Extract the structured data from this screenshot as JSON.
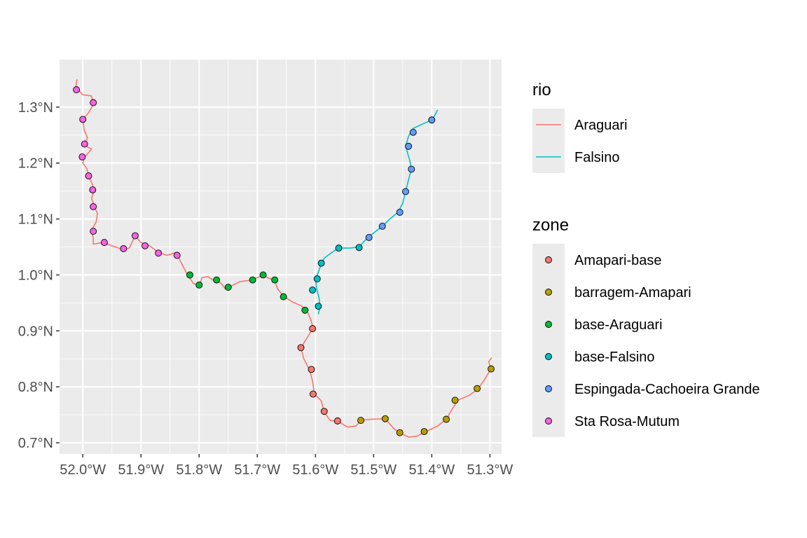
{
  "chart_data": {
    "type": "map",
    "x_axis": {
      "range": [
        -52.04,
        -51.28
      ],
      "ticks": [
        {
          "value": -52.0,
          "label": "52.0°W"
        },
        {
          "value": -51.9,
          "label": "51.9°W"
        },
        {
          "value": -51.8,
          "label": "51.8°W"
        },
        {
          "value": -51.7,
          "label": "51.7°W"
        },
        {
          "value": -51.6,
          "label": "51.6°W"
        },
        {
          "value": -51.5,
          "label": "51.5°W"
        },
        {
          "value": -51.4,
          "label": "51.4°W"
        },
        {
          "value": -51.3,
          "label": "51.3°W"
        }
      ]
    },
    "y_axis": {
      "range": [
        0.68,
        1.385
      ],
      "ticks": [
        {
          "value": 0.7,
          "label": "0.7°N"
        },
        {
          "value": 0.8,
          "label": "0.8°N"
        },
        {
          "value": 0.9,
          "label": "0.9°N"
        },
        {
          "value": 1.0,
          "label": "1.0°N"
        },
        {
          "value": 1.1,
          "label": "1.1°N"
        },
        {
          "value": 1.2,
          "label": "1.2°N"
        },
        {
          "value": 1.3,
          "label": "1.3°N"
        }
      ]
    },
    "grid": true,
    "legend_placement": "right",
    "rivers_legend": {
      "title": "rio",
      "items": [
        {
          "name": "Araguari",
          "color": "#F8766D"
        },
        {
          "name": "Falsino",
          "color": "#00BFC4"
        }
      ]
    },
    "zones_legend": {
      "title": "zone",
      "items": [
        {
          "name": "Amapari-base",
          "color": "#F8766D"
        },
        {
          "name": "barragem-Amapari",
          "color": "#B79F00"
        },
        {
          "name": "base-Araguari",
          "color": "#00BA38"
        },
        {
          "name": "base-Falsino",
          "color": "#00BFC4"
        },
        {
          "name": "Espingada-Cachoeira Grande",
          "color": "#619CFF"
        },
        {
          "name": "Sta Rosa-Mutum",
          "color": "#F564E3"
        }
      ]
    },
    "rivers": [
      {
        "name": "Araguari",
        "color": "#F8766D",
        "path": [
          [
            -52.01,
            1.35
          ],
          [
            -52.012,
            1.335
          ],
          [
            -52.0,
            1.322
          ],
          [
            -51.985,
            1.32
          ],
          [
            -51.982,
            1.305
          ],
          [
            -51.99,
            1.29
          ],
          [
            -52.0,
            1.278
          ],
          [
            -51.998,
            1.26
          ],
          [
            -51.992,
            1.245
          ],
          [
            -51.998,
            1.232
          ],
          [
            -51.985,
            1.225
          ],
          [
            -51.997,
            1.21
          ],
          [
            -52.0,
            1.2
          ],
          [
            -51.993,
            1.19
          ],
          [
            -51.99,
            1.177
          ],
          [
            -51.985,
            1.165
          ],
          [
            -51.98,
            1.152
          ],
          [
            -51.985,
            1.137
          ],
          [
            -51.98,
            1.122
          ],
          [
            -51.975,
            1.11
          ],
          [
            -51.977,
            1.095
          ],
          [
            -51.985,
            1.08
          ],
          [
            -51.982,
            1.065
          ],
          [
            -51.982,
            1.055
          ],
          [
            -51.965,
            1.058
          ],
          [
            -51.95,
            1.052
          ],
          [
            -51.93,
            1.045
          ],
          [
            -51.92,
            1.048
          ],
          [
            -51.91,
            1.07
          ],
          [
            -51.9,
            1.058
          ],
          [
            -51.885,
            1.052
          ],
          [
            -51.87,
            1.04
          ],
          [
            -51.855,
            1.035
          ],
          [
            -51.84,
            1.04
          ],
          [
            -51.83,
            1.02
          ],
          [
            -51.82,
            1.0
          ],
          [
            -51.81,
            0.985
          ],
          [
            -51.8,
            0.98
          ],
          [
            -51.795,
            0.995
          ],
          [
            -51.785,
            0.997
          ],
          [
            -51.775,
            0.99
          ],
          [
            -51.762,
            0.985
          ],
          [
            -51.755,
            0.975
          ],
          [
            -51.745,
            0.98
          ],
          [
            -51.73,
            0.988
          ],
          [
            -51.715,
            0.99
          ],
          [
            -51.7,
            0.995
          ],
          [
            -51.69,
            1.0
          ],
          [
            -51.682,
            0.995
          ],
          [
            -51.67,
            0.99
          ],
          [
            -51.665,
            0.975
          ],
          [
            -51.655,
            0.962
          ],
          [
            -51.64,
            0.952
          ],
          [
            -51.625,
            0.945
          ],
          [
            -51.615,
            0.937
          ],
          [
            -51.608,
            0.92
          ],
          [
            -51.604,
            0.905
          ],
          [
            -51.61,
            0.895
          ],
          [
            -51.625,
            0.87
          ],
          [
            -51.62,
            0.85
          ],
          [
            -51.61,
            0.83
          ],
          [
            -51.605,
            0.81
          ],
          [
            -51.602,
            0.787
          ],
          [
            -51.59,
            0.775
          ],
          [
            -51.585,
            0.755
          ],
          [
            -51.575,
            0.74
          ],
          [
            -51.56,
            0.738
          ],
          [
            -51.545,
            0.728
          ],
          [
            -51.53,
            0.73
          ],
          [
            -51.522,
            0.74
          ],
          [
            -51.505,
            0.742
          ],
          [
            -51.48,
            0.743
          ],
          [
            -51.465,
            0.725
          ],
          [
            -51.455,
            0.718
          ],
          [
            -51.44,
            0.71
          ],
          [
            -51.425,
            0.712
          ],
          [
            -51.41,
            0.72
          ],
          [
            -51.39,
            0.73
          ],
          [
            -51.375,
            0.742
          ],
          [
            -51.365,
            0.76
          ],
          [
            -51.355,
            0.776
          ],
          [
            -51.335,
            0.785
          ],
          [
            -51.32,
            0.797
          ],
          [
            -51.31,
            0.812
          ],
          [
            -51.298,
            0.832
          ],
          [
            -51.302,
            0.845
          ],
          [
            -51.297,
            0.852
          ]
        ]
      },
      {
        "name": "Falsino",
        "color": "#00BFC4",
        "path": [
          [
            -51.39,
            1.295
          ],
          [
            -51.395,
            1.285
          ],
          [
            -51.4,
            1.277
          ],
          [
            -51.415,
            1.27
          ],
          [
            -51.432,
            1.262
          ],
          [
            -51.44,
            1.248
          ],
          [
            -51.445,
            1.23
          ],
          [
            -51.438,
            1.205
          ],
          [
            -51.435,
            1.19
          ],
          [
            -51.44,
            1.17
          ],
          [
            -51.445,
            1.15
          ],
          [
            -51.45,
            1.128
          ],
          [
            -51.458,
            1.112
          ],
          [
            -51.472,
            1.1
          ],
          [
            -51.485,
            1.087
          ],
          [
            -51.5,
            1.075
          ],
          [
            -51.51,
            1.066
          ],
          [
            -51.518,
            1.058
          ],
          [
            -51.525,
            1.05
          ],
          [
            -51.54,
            1.048
          ],
          [
            -51.56,
            1.048
          ],
          [
            -51.572,
            1.04
          ],
          [
            -51.585,
            1.03
          ],
          [
            -51.59,
            1.02
          ],
          [
            -51.595,
            1.005
          ],
          [
            -51.6,
            0.993
          ],
          [
            -51.598,
            0.975
          ],
          [
            -51.594,
            0.96
          ],
          [
            -51.592,
            0.945
          ],
          [
            -51.595,
            0.93
          ]
        ]
      }
    ],
    "points": [
      {
        "zone": "Sta Rosa-Mutum",
        "lon": -52.011,
        "lat": 1.331
      },
      {
        "zone": "Sta Rosa-Mutum",
        "lon": -51.982,
        "lat": 1.308
      },
      {
        "zone": "Sta Rosa-Mutum",
        "lon": -52.0,
        "lat": 1.278
      },
      {
        "zone": "Sta Rosa-Mutum",
        "lon": -51.997,
        "lat": 1.234
      },
      {
        "zone": "Sta Rosa-Mutum",
        "lon": -52.001,
        "lat": 1.211
      },
      {
        "zone": "Sta Rosa-Mutum",
        "lon": -51.99,
        "lat": 1.177
      },
      {
        "zone": "Sta Rosa-Mutum",
        "lon": -51.983,
        "lat": 1.152
      },
      {
        "zone": "Sta Rosa-Mutum",
        "lon": -51.982,
        "lat": 1.122
      },
      {
        "zone": "Sta Rosa-Mutum",
        "lon": -51.982,
        "lat": 1.078
      },
      {
        "zone": "Sta Rosa-Mutum",
        "lon": -51.963,
        "lat": 1.058
      },
      {
        "zone": "Sta Rosa-Mutum",
        "lon": -51.93,
        "lat": 1.047
      },
      {
        "zone": "Sta Rosa-Mutum",
        "lon": -51.91,
        "lat": 1.07
      },
      {
        "zone": "Sta Rosa-Mutum",
        "lon": -51.893,
        "lat": 1.052
      },
      {
        "zone": "Sta Rosa-Mutum",
        "lon": -51.87,
        "lat": 1.039
      },
      {
        "zone": "Sta Rosa-Mutum",
        "lon": -51.838,
        "lat": 1.035
      },
      {
        "zone": "base-Araguari",
        "lon": -51.816,
        "lat": 1.0
      },
      {
        "zone": "base-Araguari",
        "lon": -51.8,
        "lat": 0.982
      },
      {
        "zone": "base-Araguari",
        "lon": -51.77,
        "lat": 0.991
      },
      {
        "zone": "base-Araguari",
        "lon": -51.75,
        "lat": 0.978
      },
      {
        "zone": "base-Araguari",
        "lon": -51.708,
        "lat": 0.991
      },
      {
        "zone": "base-Araguari",
        "lon": -51.69,
        "lat": 1.0
      },
      {
        "zone": "base-Araguari",
        "lon": -51.67,
        "lat": 0.991
      },
      {
        "zone": "base-Araguari",
        "lon": -51.655,
        "lat": 0.961
      },
      {
        "zone": "base-Araguari",
        "lon": -51.618,
        "lat": 0.937
      },
      {
        "zone": "base-Falsino",
        "lon": -51.59,
        "lat": 1.021
      },
      {
        "zone": "base-Falsino",
        "lon": -51.597,
        "lat": 0.993
      },
      {
        "zone": "base-Falsino",
        "lon": -51.605,
        "lat": 0.973
      },
      {
        "zone": "base-Falsino",
        "lon": -51.595,
        "lat": 0.944
      },
      {
        "zone": "base-Falsino",
        "lon": -51.56,
        "lat": 1.048
      },
      {
        "zone": "base-Falsino",
        "lon": -51.525,
        "lat": 1.049
      },
      {
        "zone": "Espingada-Cachoeira Grande",
        "lon": -51.4,
        "lat": 1.277
      },
      {
        "zone": "Espingada-Cachoeira Grande",
        "lon": -51.432,
        "lat": 1.255
      },
      {
        "zone": "Espingada-Cachoeira Grande",
        "lon": -51.44,
        "lat": 1.23
      },
      {
        "zone": "Espingada-Cachoeira Grande",
        "lon": -51.435,
        "lat": 1.189
      },
      {
        "zone": "Espingada-Cachoeira Grande",
        "lon": -51.445,
        "lat": 1.149
      },
      {
        "zone": "Espingada-Cachoeira Grande",
        "lon": -51.455,
        "lat": 1.112
      },
      {
        "zone": "Espingada-Cachoeira Grande",
        "lon": -51.485,
        "lat": 1.087
      },
      {
        "zone": "Espingada-Cachoeira Grande",
        "lon": -51.508,
        "lat": 1.067
      },
      {
        "zone": "Amapari-base",
        "lon": -51.605,
        "lat": 0.904
      },
      {
        "zone": "Amapari-base",
        "lon": -51.625,
        "lat": 0.87
      },
      {
        "zone": "Amapari-base",
        "lon": -51.607,
        "lat": 0.831
      },
      {
        "zone": "Amapari-base",
        "lon": -51.604,
        "lat": 0.787
      },
      {
        "zone": "Amapari-base",
        "lon": -51.585,
        "lat": 0.756
      },
      {
        "zone": "Amapari-base",
        "lon": -51.562,
        "lat": 0.739
      },
      {
        "zone": "barragem-Amapari",
        "lon": -51.522,
        "lat": 0.74
      },
      {
        "zone": "barragem-Amapari",
        "lon": -51.48,
        "lat": 0.743
      },
      {
        "zone": "barragem-Amapari",
        "lon": -51.455,
        "lat": 0.718
      },
      {
        "zone": "barragem-Amapari",
        "lon": -51.413,
        "lat": 0.72
      },
      {
        "zone": "barragem-Amapari",
        "lon": -51.375,
        "lat": 0.742
      },
      {
        "zone": "barragem-Amapari",
        "lon": -51.36,
        "lat": 0.776
      },
      {
        "zone": "barragem-Amapari",
        "lon": -51.322,
        "lat": 0.797
      },
      {
        "zone": "barragem-Amapari",
        "lon": -51.298,
        "lat": 0.832
      }
    ]
  }
}
